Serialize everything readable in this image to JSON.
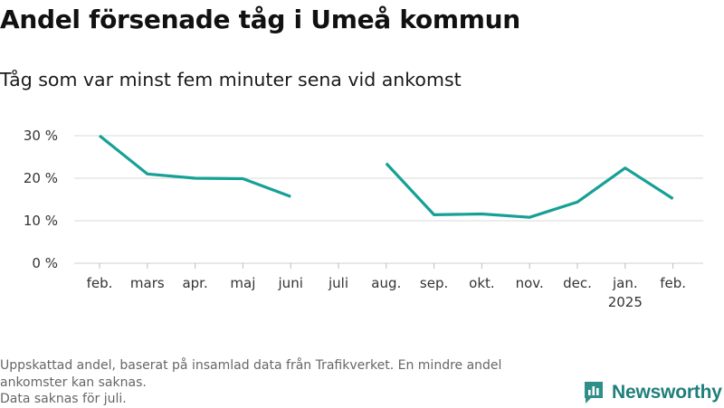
{
  "title": "Andel försenade tåg i Umeå kommun",
  "subtitle": "Tåg som var minst fem minuter sena vid ankomst",
  "footnote": {
    "line1": "Uppskattad andel, baserat på insamlad data från Trafikverket. En mindre andel ankomster kan saknas.",
    "line2": "Data saknas för juli."
  },
  "brand": {
    "name": "Newsworthy",
    "icon": "newsworthy-logo-icon"
  },
  "colors": {
    "line": "#17a096",
    "grid": "#d9d9d9",
    "text": "#333333",
    "brand": "#1f7f7a"
  },
  "chart_data": {
    "type": "line",
    "categories": [
      "feb.",
      "mars",
      "apr.",
      "maj",
      "juni",
      "juli",
      "aug.",
      "sep.",
      "okt.",
      "nov.",
      "dec.",
      "jan.",
      "feb."
    ],
    "category_sublabels": [
      "",
      "",
      "",
      "",
      "",
      "",
      "",
      "",
      "",
      "",
      "",
      "2025",
      ""
    ],
    "series": [
      {
        "values": [
          30.0,
          21.0,
          20.0,
          19.9,
          15.7,
          null,
          23.5,
          11.4,
          11.6,
          10.8,
          14.4,
          22.4,
          15.2
        ]
      }
    ],
    "y_ticks": [
      0,
      10,
      20,
      30
    ],
    "y_tick_labels": [
      "0 %",
      "10 %",
      "20 %",
      "30 %"
    ],
    "ylim": [
      0,
      30
    ],
    "grid": true,
    "xlabel": "",
    "ylabel": ""
  }
}
